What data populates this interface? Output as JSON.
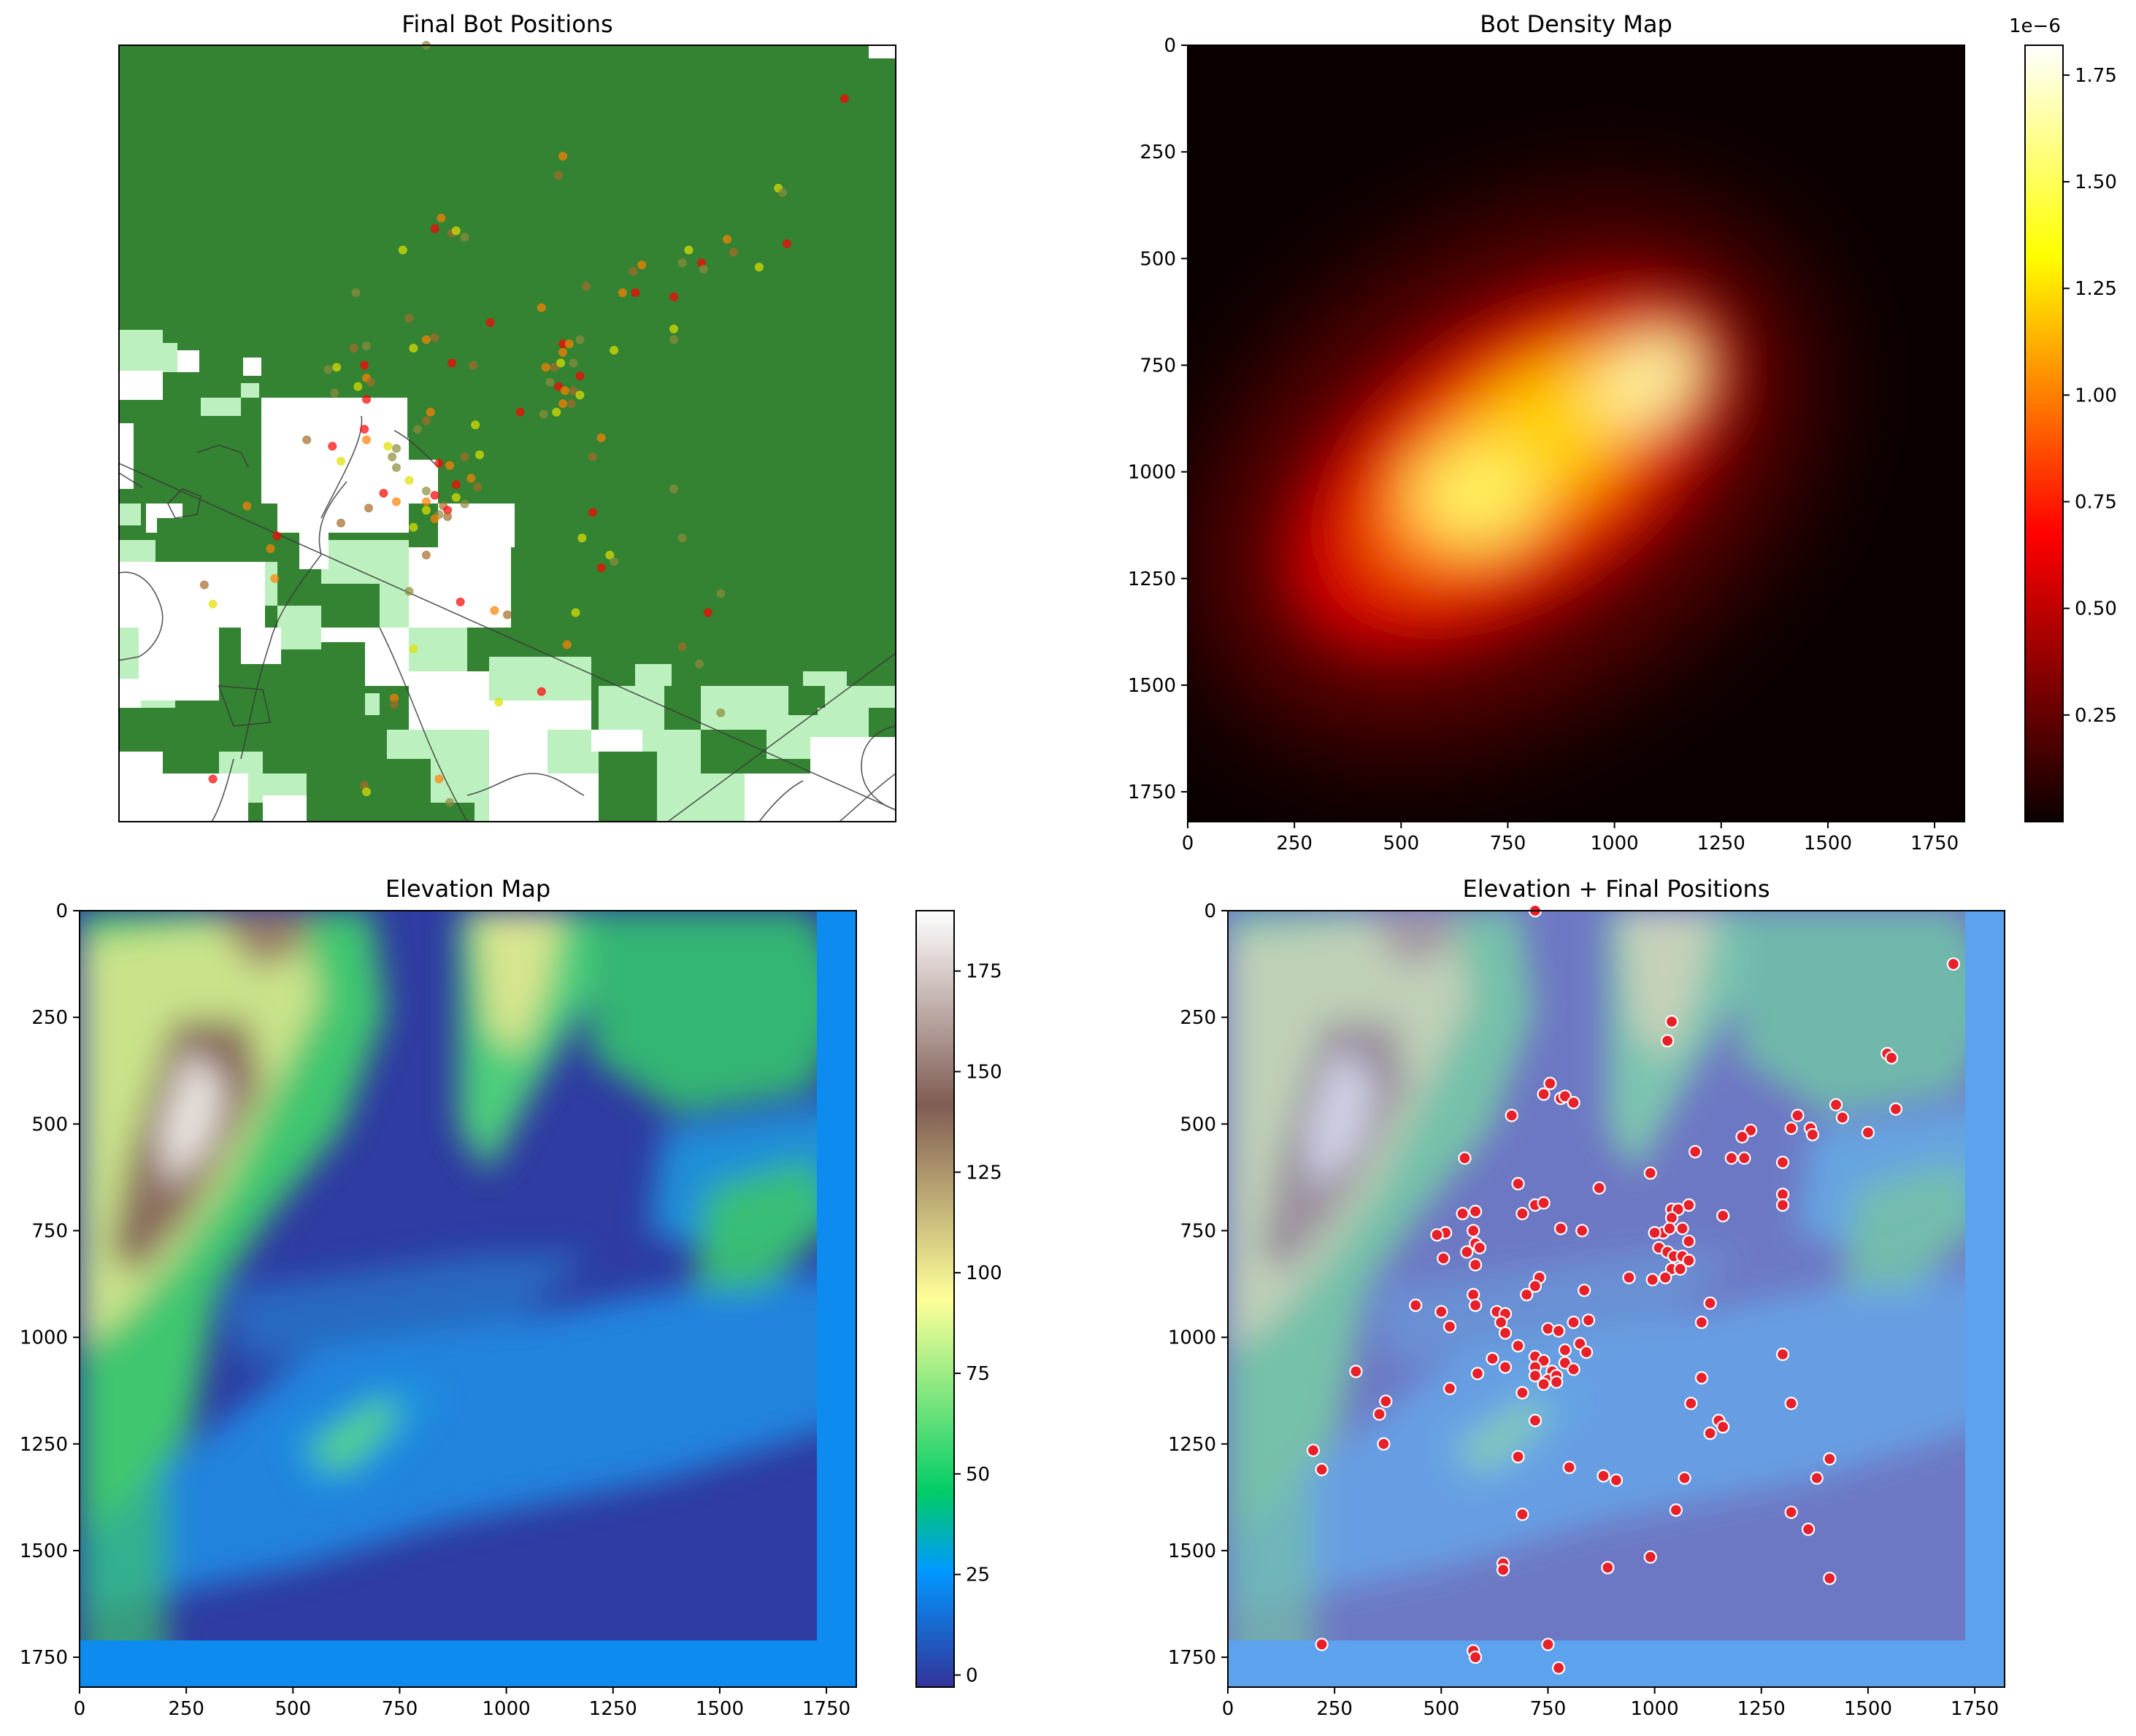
{
  "chart_data": [
    {
      "type": "scatter",
      "title": "Final Bot Positions",
      "xlabel": "",
      "ylabel": "",
      "axes_visible": false,
      "background": "land cover map with roads",
      "landcover_colors": {
        "forest": "#348332",
        "grass": "#bdf0bf",
        "open": "#ffffff"
      },
      "marker_colors": [
        "#ff0000",
        "#e0e000",
        "#ff8000",
        "#8b8b3a",
        "#a66a2a"
      ]
    },
    {
      "type": "heatmap",
      "title": "Bot Density Map",
      "colormap": "hot",
      "xlim": [
        0,
        1820
      ],
      "ylim": [
        1820,
        0
      ],
      "xticks": [
        "0",
        "250",
        "500",
        "750",
        "1000",
        "1250",
        "1500",
        "1750"
      ],
      "yticks": [
        "0",
        "250",
        "500",
        "750",
        "1000",
        "1250",
        "1500",
        "1750"
      ],
      "colorbar": {
        "ticks": [
          "0.25",
          "0.50",
          "0.75",
          "1.00",
          "1.25",
          "1.50",
          "1.75"
        ],
        "offset_text": "1e−6",
        "range": [
          0.0,
          1.82
        ]
      },
      "density_peaks": [
        {
          "x": 1050,
          "y": 780
        },
        {
          "x": 720,
          "y": 1000
        }
      ]
    },
    {
      "type": "heatmap",
      "title": "Elevation Map",
      "colormap": "terrain",
      "xlim": [
        0,
        1820
      ],
      "ylim": [
        1820,
        0
      ],
      "xticks": [
        "0",
        "250",
        "500",
        "750",
        "1000",
        "1250",
        "1500",
        "1750"
      ],
      "yticks": [
        "0",
        "250",
        "500",
        "750",
        "1000",
        "1250",
        "1500",
        "1750"
      ],
      "colorbar": {
        "ticks": [
          "0",
          "25",
          "50",
          "75",
          "100",
          "125",
          "150",
          "175"
        ],
        "range": [
          -3,
          190
        ]
      }
    },
    {
      "type": "scatter",
      "title": "Elevation + Final Positions",
      "background": "Elevation Map (terrain colormap, semi-transparent)",
      "marker_color": "#e8202a",
      "xlim": [
        0,
        1820
      ],
      "ylim": [
        1820,
        0
      ],
      "xticks": [
        "0",
        "250",
        "500",
        "750",
        "1000",
        "1250",
        "1500",
        "1750"
      ],
      "yticks": [
        "0",
        "250",
        "500",
        "750",
        "1000",
        "1250",
        "1500",
        "1750"
      ],
      "points": [
        [
          720,
          0
        ],
        [
          1700,
          125
        ],
        [
          1040,
          260
        ],
        [
          1030,
          305
        ],
        [
          1545,
          335
        ],
        [
          1555,
          345
        ],
        [
          740,
          430
        ],
        [
          755,
          405
        ],
        [
          780,
          440
        ],
        [
          790,
          435
        ],
        [
          810,
          450
        ],
        [
          1565,
          465
        ],
        [
          1425,
          455
        ],
        [
          1440,
          485
        ],
        [
          1335,
          480
        ],
        [
          1320,
          510
        ],
        [
          1365,
          510
        ],
        [
          1225,
          515
        ],
        [
          1205,
          530
        ],
        [
          1500,
          520
        ],
        [
          1370,
          525
        ],
        [
          1210,
          580
        ],
        [
          1180,
          580
        ],
        [
          1095,
          565
        ],
        [
          665,
          480
        ],
        [
          555,
          580
        ],
        [
          1300,
          590
        ],
        [
          990,
          615
        ],
        [
          680,
          640
        ],
        [
          1300,
          665
        ],
        [
          1300,
          690
        ],
        [
          870,
          650
        ],
        [
          720,
          690
        ],
        [
          740,
          685
        ],
        [
          1160,
          715
        ],
        [
          1080,
          690
        ],
        [
          1040,
          700
        ],
        [
          1055,
          700
        ],
        [
          550,
          710
        ],
        [
          690,
          710
        ],
        [
          580,
          705
        ],
        [
          780,
          745
        ],
        [
          1040,
          720
        ],
        [
          1020,
          755
        ],
        [
          1035,
          745
        ],
        [
          1065,
          745
        ],
        [
          1080,
          775
        ],
        [
          1000,
          755
        ],
        [
          830,
          750
        ],
        [
          510,
          755
        ],
        [
          490,
          760
        ],
        [
          575,
          750
        ],
        [
          580,
          780
        ],
        [
          590,
          790
        ],
        [
          560,
          800
        ],
        [
          1010,
          790
        ],
        [
          1030,
          800
        ],
        [
          1045,
          810
        ],
        [
          1065,
          810
        ],
        [
          1080,
          820
        ],
        [
          505,
          815
        ],
        [
          580,
          830
        ],
        [
          1040,
          840
        ],
        [
          1060,
          840
        ],
        [
          1025,
          860
        ],
        [
          995,
          865
        ],
        [
          940,
          860
        ],
        [
          730,
          860
        ],
        [
          720,
          880
        ],
        [
          835,
          890
        ],
        [
          700,
          900
        ],
        [
          575,
          900
        ],
        [
          580,
          925
        ],
        [
          440,
          925
        ],
        [
          630,
          940
        ],
        [
          650,
          945
        ],
        [
          500,
          940
        ],
        [
          1130,
          920
        ],
        [
          1110,
          965
        ],
        [
          520,
          975
        ],
        [
          640,
          965
        ],
        [
          750,
          980
        ],
        [
          775,
          985
        ],
        [
          810,
          965
        ],
        [
          845,
          960
        ],
        [
          650,
          990
        ],
        [
          790,
          1030
        ],
        [
          825,
          1015
        ],
        [
          840,
          1035
        ],
        [
          680,
          1020
        ],
        [
          720,
          1045
        ],
        [
          740,
          1055
        ],
        [
          720,
          1070
        ],
        [
          760,
          1080
        ],
        [
          790,
          1060
        ],
        [
          810,
          1075
        ],
        [
          620,
          1050
        ],
        [
          650,
          1070
        ],
        [
          585,
          1085
        ],
        [
          720,
          1090
        ],
        [
          750,
          1100
        ],
        [
          770,
          1090
        ],
        [
          740,
          1110
        ],
        [
          770,
          1105
        ],
        [
          690,
          1130
        ],
        [
          1300,
          1040
        ],
        [
          1110,
          1095
        ],
        [
          300,
          1080
        ],
        [
          520,
          1120
        ],
        [
          1085,
          1155
        ],
        [
          1320,
          1155
        ],
        [
          370,
          1150
        ],
        [
          355,
          1180
        ],
        [
          720,
          1195
        ],
        [
          1150,
          1195
        ],
        [
          1160,
          1210
        ],
        [
          1130,
          1225
        ],
        [
          365,
          1250
        ],
        [
          200,
          1265
        ],
        [
          220,
          1310
        ],
        [
          680,
          1280
        ],
        [
          800,
          1305
        ],
        [
          880,
          1325
        ],
        [
          910,
          1335
        ],
        [
          1070,
          1330
        ],
        [
          1410,
          1285
        ],
        [
          1380,
          1330
        ],
        [
          1050,
          1405
        ],
        [
          1320,
          1410
        ],
        [
          690,
          1415
        ],
        [
          1360,
          1450
        ],
        [
          990,
          1515
        ],
        [
          645,
          1530
        ],
        [
          645,
          1545
        ],
        [
          890,
          1540
        ],
        [
          1410,
          1565
        ],
        [
          220,
          1720
        ],
        [
          750,
          1720
        ],
        [
          575,
          1735
        ],
        [
          580,
          1750
        ],
        [
          775,
          1775
        ]
      ]
    }
  ]
}
